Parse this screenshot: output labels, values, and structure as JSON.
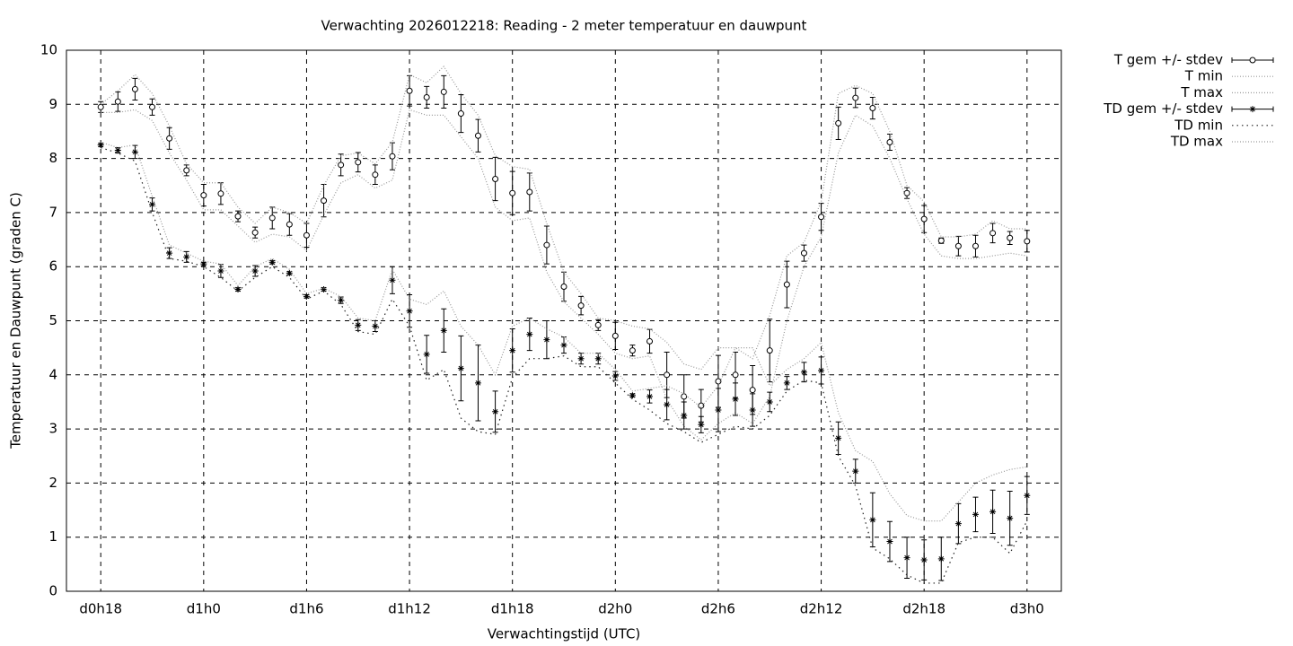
{
  "chart_data": {
    "type": "errorbar-line",
    "title": "Verwachting 2026012218: Reading - 2 meter temperatuur en dauwpunt",
    "x_label": "Verwachtingstijd (UTC)",
    "y_label": "Temperatuur en Dauwpunt (graden C)",
    "x": [
      18,
      19,
      20,
      21,
      22,
      23,
      24,
      25,
      26,
      27,
      28,
      29,
      30,
      31,
      32,
      33,
      34,
      35,
      36,
      37,
      38,
      39,
      40,
      41,
      42,
      43,
      44,
      45,
      46,
      47,
      48,
      49,
      50,
      51,
      52,
      53,
      54,
      55,
      56,
      57,
      58,
      59,
      60,
      61,
      62,
      63,
      64,
      65,
      66,
      67,
      68,
      69,
      70,
      71,
      72
    ],
    "xlim": [
      16,
      74
    ],
    "xticks": [
      {
        "value": 18,
        "label": "d0h18"
      },
      {
        "value": 24,
        "label": "d1h0"
      },
      {
        "value": 30,
        "label": "d1h6"
      },
      {
        "value": 36,
        "label": "d1h12"
      },
      {
        "value": 42,
        "label": "d1h18"
      },
      {
        "value": 48,
        "label": "d2h0"
      },
      {
        "value": 54,
        "label": "d2h6"
      },
      {
        "value": 60,
        "label": "d2h12"
      },
      {
        "value": 66,
        "label": "d2h18"
      },
      {
        "value": 72,
        "label": "d3h0"
      }
    ],
    "ylim": [
      0,
      10
    ],
    "yticks": [
      0,
      1,
      2,
      3,
      4,
      5,
      6,
      7,
      8,
      9,
      10
    ],
    "grid": true,
    "legend": "outside-right-top",
    "series": [
      {
        "name": "T gem +/- stdev",
        "style": "errorbars",
        "marker": "circle",
        "color": "#000000",
        "values": [
          8.95,
          9.05,
          9.28,
          8.95,
          8.37,
          7.78,
          7.32,
          7.35,
          6.93,
          6.63,
          6.9,
          6.78,
          6.58,
          7.22,
          7.88,
          7.93,
          7.7,
          8.04,
          9.25,
          9.13,
          9.23,
          8.83,
          8.42,
          7.62,
          7.36,
          7.38,
          6.4,
          5.63,
          5.28,
          4.92,
          4.72,
          4.45,
          4.62,
          4.0,
          3.6,
          3.43,
          3.88,
          4.0,
          3.72,
          4.45,
          5.67,
          6.25,
          6.92,
          8.65,
          9.12,
          8.93,
          8.3,
          7.36,
          6.88,
          6.48,
          6.38,
          6.38,
          6.62,
          6.53,
          6.47
        ],
        "errors": [
          0.1,
          0.18,
          0.2,
          0.15,
          0.2,
          0.1,
          0.2,
          0.2,
          0.1,
          0.1,
          0.2,
          0.2,
          0.22,
          0.3,
          0.2,
          0.18,
          0.18,
          0.25,
          0.28,
          0.2,
          0.3,
          0.35,
          0.3,
          0.4,
          0.4,
          0.35,
          0.35,
          0.27,
          0.17,
          0.1,
          0.25,
          0.1,
          0.22,
          0.42,
          0.4,
          0.3,
          0.48,
          0.42,
          0.45,
          0.58,
          0.43,
          0.15,
          0.25,
          0.3,
          0.18,
          0.2,
          0.15,
          0.1,
          0.25,
          0.05,
          0.18,
          0.2,
          0.18,
          0.12,
          0.2
        ]
      },
      {
        "name": "T min",
        "style": "lines",
        "color": "#999999",
        "dash": "1 2",
        "values": [
          8.85,
          8.85,
          8.9,
          8.7,
          8.1,
          7.6,
          7.05,
          7.05,
          6.75,
          6.45,
          6.6,
          6.55,
          6.3,
          6.95,
          7.55,
          7.7,
          7.45,
          7.6,
          8.9,
          8.8,
          8.8,
          8.4,
          8.0,
          7.1,
          6.85,
          6.9,
          5.9,
          5.35,
          5.05,
          4.75,
          4.4,
          4.3,
          4.35,
          3.55,
          3.05,
          2.8,
          3.1,
          3.3,
          3.1,
          3.6,
          5.0,
          6.0,
          6.55,
          8.1,
          8.8,
          8.6,
          8.0,
          7.25,
          6.6,
          6.2,
          6.15,
          6.15,
          6.2,
          6.25,
          6.2
        ]
      },
      {
        "name": "T max",
        "style": "lines",
        "color": "#999999",
        "dash": "1 2",
        "values": [
          9.0,
          9.25,
          9.55,
          9.2,
          8.6,
          7.9,
          7.55,
          7.55,
          7.1,
          6.8,
          7.1,
          7.0,
          6.8,
          7.5,
          8.05,
          8.1,
          7.9,
          8.3,
          9.55,
          9.4,
          9.7,
          9.2,
          8.8,
          8.05,
          7.85,
          7.8,
          6.8,
          5.9,
          5.5,
          5.05,
          5.0,
          4.9,
          4.85,
          4.6,
          4.2,
          4.1,
          4.5,
          4.5,
          4.3,
          5.1,
          6.2,
          6.45,
          7.2,
          9.2,
          9.35,
          9.2,
          8.5,
          7.5,
          7.2,
          6.55,
          6.55,
          6.6,
          6.85,
          6.7,
          6.7
        ]
      },
      {
        "name": "TD gem +/- stdev",
        "style": "errorbars",
        "marker": "star",
        "color": "#000000",
        "values": [
          8.25,
          8.15,
          8.12,
          7.15,
          6.25,
          6.18,
          6.05,
          5.92,
          5.58,
          5.92,
          6.08,
          5.88,
          5.45,
          5.58,
          5.38,
          4.92,
          4.9,
          5.75,
          5.18,
          4.38,
          4.82,
          4.12,
          3.85,
          3.32,
          4.45,
          4.75,
          4.65,
          4.55,
          4.3,
          4.3,
          3.98,
          3.62,
          3.6,
          3.45,
          3.25,
          3.08,
          3.35,
          3.55,
          3.35,
          3.5,
          3.85,
          4.05,
          4.08,
          2.83,
          2.22,
          1.32,
          0.92,
          0.62,
          0.58,
          0.6,
          1.25,
          1.42,
          1.47,
          1.35,
          1.77
        ],
        "errors": [
          0.03,
          0.05,
          0.12,
          0.12,
          0.1,
          0.1,
          0.03,
          0.12,
          0.03,
          0.1,
          0.03,
          0.03,
          0.03,
          0.03,
          0.06,
          0.1,
          0.1,
          0.25,
          0.3,
          0.35,
          0.4,
          0.6,
          0.7,
          0.38,
          0.4,
          0.3,
          0.35,
          0.15,
          0.1,
          0.1,
          0.08,
          0.03,
          0.12,
          0.28,
          0.25,
          0.15,
          0.4,
          0.3,
          0.3,
          0.18,
          0.12,
          0.18,
          0.25,
          0.3,
          0.22,
          0.5,
          0.37,
          0.38,
          0.37,
          0.4,
          0.37,
          0.32,
          0.4,
          0.5,
          0.35
        ]
      },
      {
        "name": "TD min",
        "style": "lines",
        "color": "#222222",
        "dash": "1.5 4",
        "values": [
          8.2,
          8.1,
          7.95,
          7.0,
          6.15,
          6.1,
          6.0,
          5.8,
          5.55,
          5.8,
          6.0,
          5.8,
          5.4,
          5.55,
          5.3,
          4.8,
          4.75,
          5.4,
          4.9,
          3.9,
          4.1,
          3.2,
          2.95,
          2.9,
          3.95,
          4.3,
          4.3,
          4.35,
          4.15,
          4.15,
          3.85,
          3.55,
          3.35,
          3.1,
          2.95,
          2.75,
          2.9,
          3.05,
          3.0,
          3.25,
          3.7,
          3.9,
          3.85,
          2.5,
          1.95,
          0.8,
          0.6,
          0.3,
          0.15,
          0.15,
          0.9,
          1.0,
          1.0,
          0.7,
          1.3
        ]
      },
      {
        "name": "TD max",
        "style": "lines",
        "color": "#999999",
        "dash": "1 2",
        "values": [
          8.3,
          8.2,
          8.25,
          7.3,
          6.4,
          6.25,
          6.1,
          6.05,
          5.65,
          6.0,
          6.15,
          5.95,
          5.5,
          5.6,
          5.45,
          5.05,
          5.0,
          5.95,
          5.4,
          5.3,
          5.55,
          4.9,
          4.55,
          4.0,
          4.9,
          5.05,
          4.85,
          4.7,
          4.4,
          4.4,
          4.1,
          3.7,
          3.75,
          3.8,
          3.65,
          3.4,
          3.8,
          4.5,
          4.5,
          3.8,
          4.1,
          4.3,
          4.6,
          3.3,
          2.6,
          2.4,
          1.8,
          1.4,
          1.3,
          1.3,
          1.65,
          2.0,
          2.15,
          2.25,
          2.3
        ]
      }
    ]
  }
}
